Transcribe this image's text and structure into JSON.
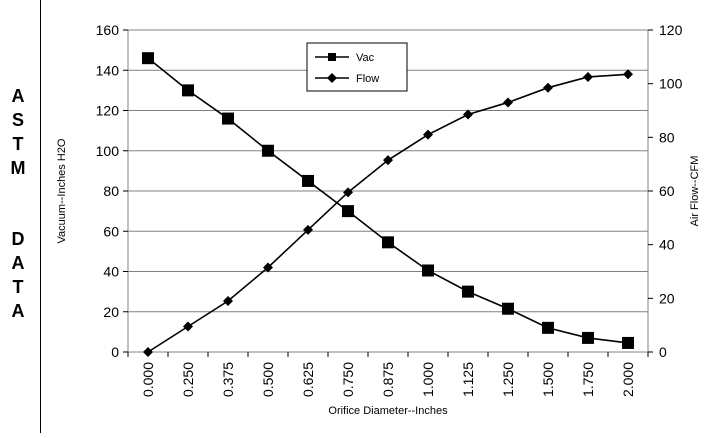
{
  "side_label": {
    "letters": [
      "A",
      "S",
      "T",
      "M",
      "D",
      "A",
      "T",
      "A"
    ]
  },
  "chart_data": {
    "type": "line",
    "title": "",
    "xlabel": "Orifice Diameter--Inches",
    "ylabel_left": "Vacuum--Inches H2O",
    "ylabel_right": "Air Flow--CFM",
    "categories": [
      "0.000",
      "0.250",
      "0.375",
      "0.500",
      "0.625",
      "0.750",
      "0.875",
      "1.000",
      "1.125",
      "1.250",
      "1.500",
      "1.750",
      "2.000"
    ],
    "y_left": {
      "ylim": [
        0,
        160
      ],
      "ticks": [
        "0",
        "20",
        "40",
        "60",
        "80",
        "100",
        "120",
        "140",
        "160"
      ]
    },
    "y_right": {
      "ylim": [
        0,
        120
      ],
      "ticks": [
        "0",
        "20",
        "40",
        "60",
        "80",
        "100",
        "120"
      ]
    },
    "grid": true,
    "legend_position": "top-center",
    "series": [
      {
        "name": "Vac",
        "axis": "left",
        "marker": "square",
        "values": [
          146,
          130,
          116,
          100,
          85,
          70,
          54.5,
          40.5,
          30,
          21.5,
          12,
          7,
          4.5
        ]
      },
      {
        "name": "Flow",
        "axis": "right",
        "marker": "diamond",
        "values": [
          0,
          9.5,
          19,
          31.5,
          45.5,
          59.5,
          71.5,
          81,
          88.5,
          93,
          98.5,
          102.5,
          103.5
        ]
      }
    ]
  }
}
